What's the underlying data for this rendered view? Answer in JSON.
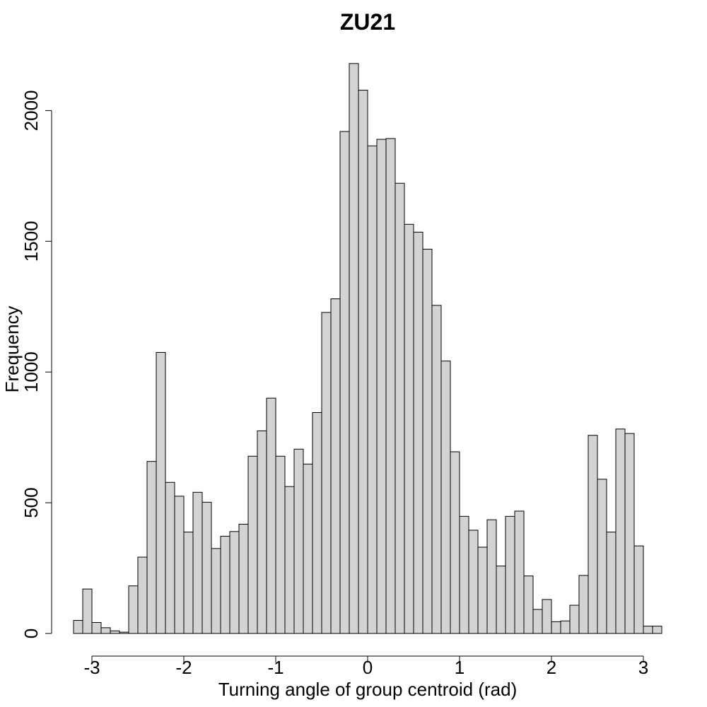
{
  "chart_data": {
    "type": "bar",
    "title": "ZU21",
    "xlabel": "Turning angle of group centroid (rad)",
    "ylabel": "Frequency",
    "x_range": [
      -3.2,
      3.2
    ],
    "bin_width": 0.1,
    "x_ticks": [
      -3,
      -2,
      -1,
      0,
      1,
      2,
      3
    ],
    "x_tick_labels": [
      "-3",
      "-2",
      "-1",
      "0",
      "1",
      "2",
      "3"
    ],
    "ylim": [
      0,
      2200
    ],
    "y_ticks": [
      0,
      500,
      1000,
      1500,
      2000
    ],
    "y_tick_labels": [
      "0",
      "500",
      "1000",
      "1500",
      "2000"
    ],
    "values": [
      50,
      170,
      42,
      22,
      10,
      5,
      182,
      292,
      658,
      1075,
      578,
      525,
      388,
      540,
      502,
      325,
      372,
      390,
      418,
      678,
      775,
      900,
      678,
      562,
      705,
      648,
      845,
      1228,
      1280,
      1920,
      2180,
      2078,
      1865,
      1890,
      1893,
      1722,
      1565,
      1535,
      1470,
      1255,
      1042,
      695,
      448,
      395,
      330,
      435,
      258,
      448,
      468,
      220,
      92,
      130,
      45,
      48,
      108,
      222,
      758,
      590,
      388,
      782,
      765,
      335,
      28,
      28
    ]
  }
}
